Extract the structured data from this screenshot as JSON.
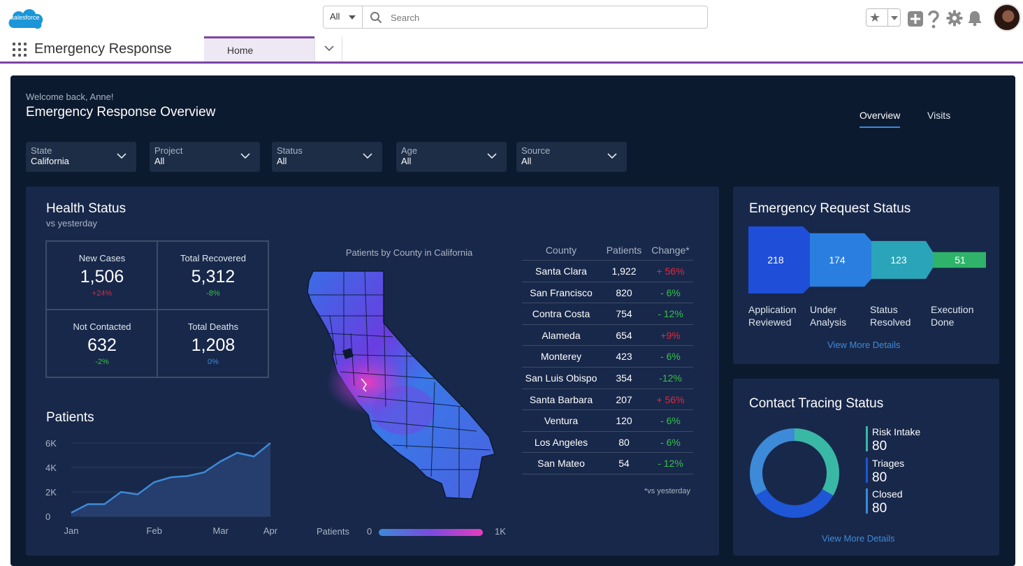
{
  "header": {
    "logo_text": "salesforce",
    "search": {
      "scope": "All",
      "placeholder": "Search"
    }
  },
  "nav": {
    "app_name": "Emergency Response",
    "tabs": [
      {
        "label": "Home"
      }
    ]
  },
  "dashboard": {
    "welcome": "Welcome back, Anne!",
    "title": "Emergency Response Overview",
    "view_tabs": [
      {
        "label": "Overview"
      },
      {
        "label": "Visits"
      }
    ],
    "filters": [
      {
        "label": "State",
        "value": "California"
      },
      {
        "label": "Project",
        "value": "All"
      },
      {
        "label": "Status",
        "value": "All"
      },
      {
        "label": "Age",
        "value": "All"
      },
      {
        "label": "Source",
        "value": "All"
      }
    ]
  },
  "health": {
    "title": "Health Status",
    "subtitle": "vs yesterday",
    "kpis": [
      {
        "label": "New Cases",
        "value": "1,506",
        "delta": "+24%",
        "delta_color": "#e0283a"
      },
      {
        "label": "Total Recovered",
        "value": "5,312",
        "delta": "-8%",
        "delta_color": "#38c04a"
      },
      {
        "label": "Not Contacted",
        "value": "632",
        "delta": "-2%",
        "delta_color": "#38c04a"
      },
      {
        "label": "Total Deaths",
        "value": "1,208",
        "delta": "0%",
        "delta_color": "#3d8ad8"
      }
    ],
    "patients_chart": {
      "title": "Patients",
      "chart_data": {
        "type": "area",
        "title": "Patients",
        "x": [
          "Jan",
          "",
          "",
          "",
          "",
          "Feb",
          "",
          "",
          "",
          "Mar",
          "",
          "",
          "Apr"
        ],
        "xticks": [
          "Jan",
          "Feb",
          "Mar",
          "Apr"
        ],
        "yticks": [
          "0",
          "2K",
          "4K",
          "6K"
        ],
        "ylim": [
          0,
          6000
        ],
        "values": [
          300,
          1000,
          1000,
          2000,
          1800,
          2800,
          3200,
          3300,
          3600,
          4500,
          5200,
          4900,
          6000
        ]
      }
    },
    "map": {
      "title": "Patients by County in California",
      "legend_label": "Patients",
      "legend_min": "0",
      "legend_max": "1K"
    },
    "table": {
      "headers": [
        "County",
        "Patients",
        "Change*"
      ],
      "rows": [
        {
          "county": "Santa Clara",
          "patients": "1,922",
          "change": "+ 56%",
          "color": "#e0283a"
        },
        {
          "county": "San Francisco",
          "patients": "820",
          "change": "- 6%",
          "color": "#38c04a"
        },
        {
          "county": "Contra Costa",
          "patients": "754",
          "change": "- 12%",
          "color": "#38c04a"
        },
        {
          "county": "Alameda",
          "patients": "654",
          "change": "+9%",
          "color": "#e0283a"
        },
        {
          "county": "Monterey",
          "patients": "423",
          "change": "- 6%",
          "color": "#38c04a"
        },
        {
          "county": "San Luis Obispo",
          "patients": "354",
          "change": "-12%",
          "color": "#38c04a"
        },
        {
          "county": "Santa Barbara",
          "patients": "207",
          "change": "+ 56%",
          "color": "#e0283a"
        },
        {
          "county": "Ventura",
          "patients": "120",
          "change": "- 6%",
          "color": "#38c04a"
        },
        {
          "county": "Los Angeles",
          "patients": "80",
          "change": "- 6%",
          "color": "#38c04a"
        },
        {
          "county": "San Mateo",
          "patients": "54",
          "change": "- 12%",
          "color": "#38c04a"
        }
      ],
      "footnote": "*vs yesterday"
    }
  },
  "emergency": {
    "title": "Emergency Request Status",
    "chart_data": {
      "type": "bar",
      "title": "Emergency Request Status",
      "categories": [
        "Application Reviewed",
        "Under Analysis",
        "Status Resolved",
        "Execution Done"
      ],
      "values": [
        218,
        174,
        123,
        51
      ]
    },
    "stages": [
      {
        "line1": "Application",
        "line2": "Reviewed",
        "value": "218"
      },
      {
        "line1": "Under",
        "line2": "Analysis",
        "value": "174"
      },
      {
        "line1": "Status",
        "line2": "Resolved",
        "value": "123"
      },
      {
        "line1": "Execution",
        "line2": "Done",
        "value": "51"
      }
    ],
    "link": "View More Details"
  },
  "tracing": {
    "title": "Contact Tracing Status",
    "chart_data": {
      "type": "pie",
      "title": "Contact Tracing Status",
      "categories": [
        "Risk Intake",
        "Triages",
        "Closed"
      ],
      "values": [
        80,
        80,
        80
      ]
    },
    "legend": [
      {
        "label": "Risk Intake",
        "value": "80",
        "color": "#39b8a6"
      },
      {
        "label": "Triages",
        "value": "80",
        "color": "#1f56d6"
      },
      {
        "label": "Closed",
        "value": "80",
        "color": "#3d8ad8"
      }
    ],
    "link": "View More Details"
  },
  "colors": {
    "accent": "#7b45a8",
    "dash_bg": "#0c1a2f",
    "card_bg": "#18284a",
    "link": "#3d8ad8"
  }
}
